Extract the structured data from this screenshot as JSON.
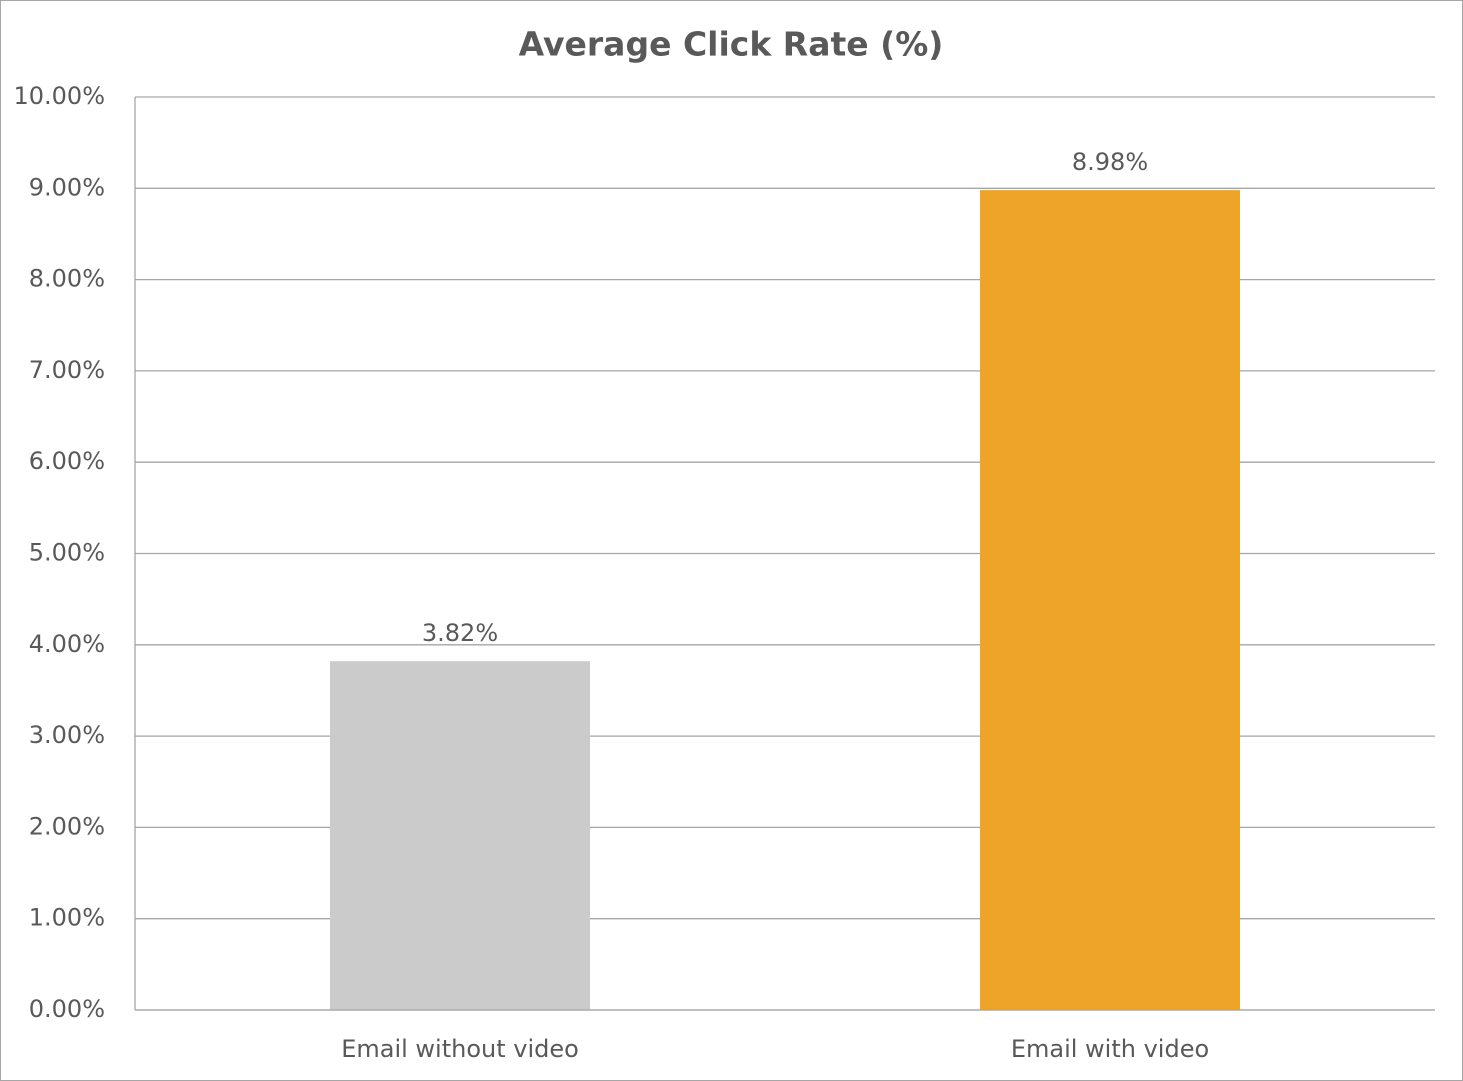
{
  "chart_data": {
    "type": "bar",
    "title": "Average Click Rate (%)",
    "categories": [
      "Email without video",
      "Email with video"
    ],
    "values": [
      3.82,
      8.98
    ],
    "value_labels": [
      "3.82%",
      "8.98%"
    ],
    "colors": [
      "#cbcbcb",
      "#eda428"
    ],
    "ylim": [
      0,
      10
    ],
    "yticks": [
      {
        "value": 0,
        "label": "0.00%"
      },
      {
        "value": 1,
        "label": "1.00%"
      },
      {
        "value": 2,
        "label": "2.00%"
      },
      {
        "value": 3,
        "label": "3.00%"
      },
      {
        "value": 4,
        "label": "4.00%"
      },
      {
        "value": 5,
        "label": "5.00%"
      },
      {
        "value": 6,
        "label": "6.00%"
      },
      {
        "value": 7,
        "label": "7.00%"
      },
      {
        "value": 8,
        "label": "8.00%"
      },
      {
        "value": 9,
        "label": "9.00%"
      },
      {
        "value": 10,
        "label": "10.00%"
      }
    ],
    "grid": true
  }
}
